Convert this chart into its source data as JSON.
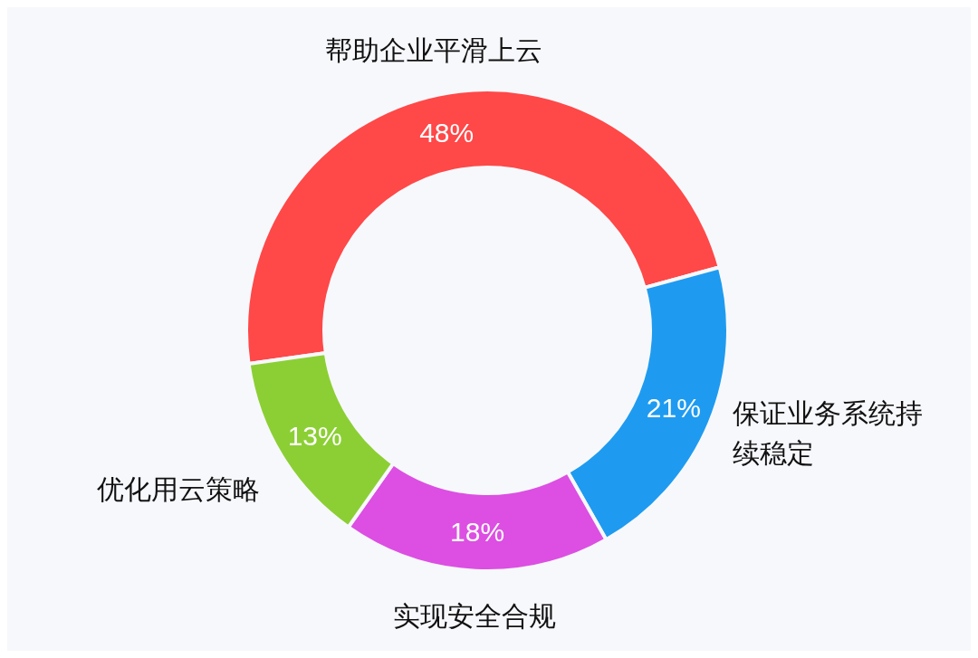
{
  "chart_data": {
    "type": "donut",
    "categories": [
      "帮助企业平滑上云",
      "保证业务系统持续稳定",
      "实现安全合规",
      "优化用云策略"
    ],
    "values": [
      48,
      21,
      18,
      13
    ],
    "value_labels": [
      "48%",
      "21%",
      "18%",
      "13%"
    ],
    "colors": [
      "#ff4848",
      "#1e9bf0",
      "#dc4fe2",
      "#8ccf34"
    ],
    "legend": false
  }
}
